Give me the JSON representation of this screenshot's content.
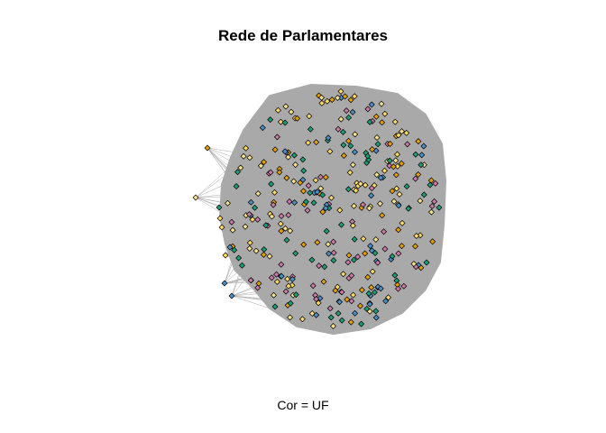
{
  "title": "Rede de Parlamentares",
  "subtitle": "Cor = UF",
  "colors": {
    "edge": "#a9a9a9",
    "node_outline": "#000000",
    "palette": [
      "#1b9e77",
      "#ffd966",
      "#e69f00",
      "#4a90c8",
      "#cc79a7",
      "#f5e08c"
    ]
  }
}
